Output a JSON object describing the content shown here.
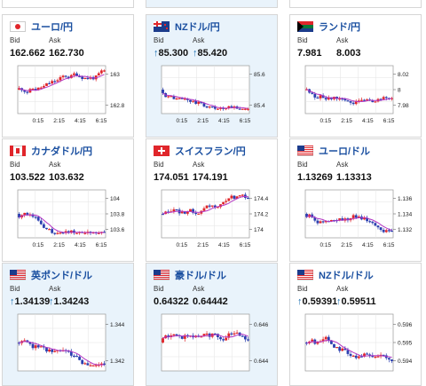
{
  "cards": [
    {
      "pair": "ユーロ/円",
      "flag": "jp-icon",
      "bid": "162.662",
      "ask": "162.730",
      "bid_arrow": "",
      "ask_arrow": "",
      "chart_data": {
        "type": "candlestick",
        "y_ticks": [
          "163",
          "162.8"
        ],
        "x_ticks": [
          "0:15",
          "2:15",
          "4:15",
          "6:15"
        ]
      }
    },
    {
      "pair": "NZドル/円",
      "flag": "nz-icon",
      "bid": "85.300",
      "ask": "85.420",
      "bid_arrow": "↑",
      "ask_arrow": "↑",
      "chart_data": {
        "type": "candlestick",
        "y_ticks": [
          "85.6",
          "85.4"
        ],
        "x_ticks": [
          "0:15",
          "2:15",
          "4:15",
          "6:15"
        ]
      }
    },
    {
      "pair": "ランド/円",
      "flag": "za-icon",
      "bid": "7.981",
      "ask": "8.003",
      "bid_arrow": "",
      "ask_arrow": "",
      "chart_data": {
        "type": "candlestick",
        "y_ticks": [
          "8.02",
          "8",
          "7.98"
        ],
        "x_ticks": [
          "0:15",
          "2:15",
          "4:15",
          "6:15"
        ]
      }
    },
    {
      "pair": "カナダドル/円",
      "flag": "ca-icon",
      "bid": "103.522",
      "ask": "103.632",
      "bid_arrow": "",
      "ask_arrow": "",
      "chart_data": {
        "type": "candlestick",
        "y_ticks": [
          "104",
          "103.8",
          "103.6"
        ],
        "x_ticks": [
          "0:15",
          "2:15",
          "4:15",
          "6:15"
        ]
      }
    },
    {
      "pair": "スイスフラン/円",
      "flag": "ch-icon",
      "bid": "174.051",
      "ask": "174.191",
      "bid_arrow": "",
      "ask_arrow": "",
      "chart_data": {
        "type": "candlestick",
        "y_ticks": [
          "174.4",
          "174.2",
          "174"
        ],
        "x_ticks": [
          "0:15",
          "2:15",
          "4:15",
          "6:15"
        ]
      }
    },
    {
      "pair": "ユーロ/ドル",
      "flag": "us-icon",
      "bid": "1.13269",
      "ask": "1.13313",
      "bid_arrow": "",
      "ask_arrow": "",
      "chart_data": {
        "type": "candlestick",
        "y_ticks": [
          "1.136",
          "1.134",
          "1.132"
        ],
        "x_ticks": [
          "0:15",
          "2:15",
          "4:15",
          "6:15"
        ]
      }
    },
    {
      "pair": "英ポンド/ドル",
      "flag": "us-icon",
      "bid": "1.34139",
      "ask": "1.34243",
      "bid_arrow": "↑",
      "ask_arrow": "↑",
      "chart_data": {
        "type": "candlestick",
        "y_ticks": [
          "1.344",
          "1.342"
        ],
        "x_ticks": []
      }
    },
    {
      "pair": "豪ドル/ドル",
      "flag": "us-icon",
      "bid": "0.64322",
      "ask": "0.64442",
      "bid_arrow": "",
      "ask_arrow": "",
      "chart_data": {
        "type": "candlestick",
        "y_ticks": [
          "0.646",
          "0.644"
        ],
        "x_ticks": []
      }
    },
    {
      "pair": "NZドル/ドル",
      "flag": "us-icon",
      "bid": "0.59391",
      "ask": "0.59511",
      "bid_arrow": "↑",
      "ask_arrow": "↑",
      "chart_data": {
        "type": "candlestick",
        "y_ticks": [
          "0.596",
          "0.595",
          "0.594"
        ],
        "x_ticks": []
      }
    }
  ],
  "labels": {
    "bid": "Bid",
    "ask": "Ask"
  },
  "colors": {
    "up": "#e0262b",
    "down": "#2b3fb0",
    "ma": "#b437c4",
    "accent": "#1a4fa0",
    "highlight_bg": "#e9f3fb"
  }
}
